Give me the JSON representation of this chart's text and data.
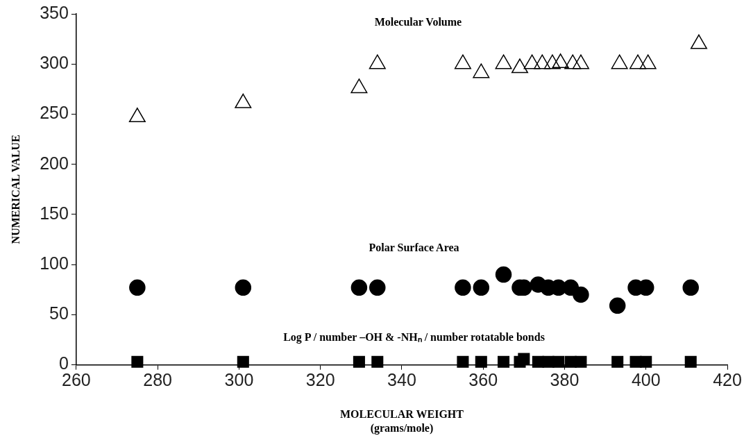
{
  "chart_data": {
    "type": "scatter",
    "xlabel": "MOLECULAR WEIGHT\n(grams/mole)",
    "ylabel": "NUMERICAL VALUE",
    "xlim": [
      260,
      420
    ],
    "xticks": [
      260,
      280,
      300,
      320,
      340,
      360,
      380,
      400,
      420
    ],
    "ylim": [
      0,
      350
    ],
    "yticks": [
      0,
      50,
      100,
      150,
      200,
      250,
      300,
      350
    ],
    "grid": false,
    "legend": false,
    "series": [
      {
        "name": "Molecular Volume",
        "color": "#000000",
        "marker": "triangle",
        "x": [
          275,
          301,
          329.5,
          334,
          355,
          359.5,
          365,
          369,
          372,
          374.5,
          377,
          379,
          382,
          384,
          393.5,
          398,
          400.5,
          413
        ],
        "values": [
          247,
          261,
          276,
          300,
          300,
          291,
          300,
          296,
          300,
          300,
          300,
          301,
          300,
          300,
          300,
          300,
          300,
          320
        ]
      },
      {
        "name": "Polar Surface Area",
        "color": "#000000",
        "marker": "circle",
        "x": [
          275,
          301,
          329.5,
          334,
          355,
          359.5,
          365,
          369,
          370,
          373.5,
          376,
          378.5,
          381.5,
          384,
          393,
          397.5,
          400,
          411
        ],
        "values": [
          77,
          77,
          77,
          77,
          77,
          77,
          90,
          77,
          77,
          80,
          77,
          77,
          77,
          70,
          59,
          77,
          77,
          77
        ]
      },
      {
        "name": "Log P / number –OH & -NHₙ / number rotatable bonds",
        "color": "#000000",
        "marker": "square",
        "x": [
          275,
          301,
          329.5,
          334,
          355,
          359.5,
          365,
          369,
          370,
          373.5,
          376,
          378.5,
          381.5,
          384,
          393,
          397.5,
          400,
          411
        ],
        "values": [
          3,
          3,
          3,
          3,
          3,
          3,
          3,
          3,
          6,
          3,
          3,
          3,
          3,
          3,
          3,
          3,
          3,
          3
        ]
      }
    ]
  }
}
